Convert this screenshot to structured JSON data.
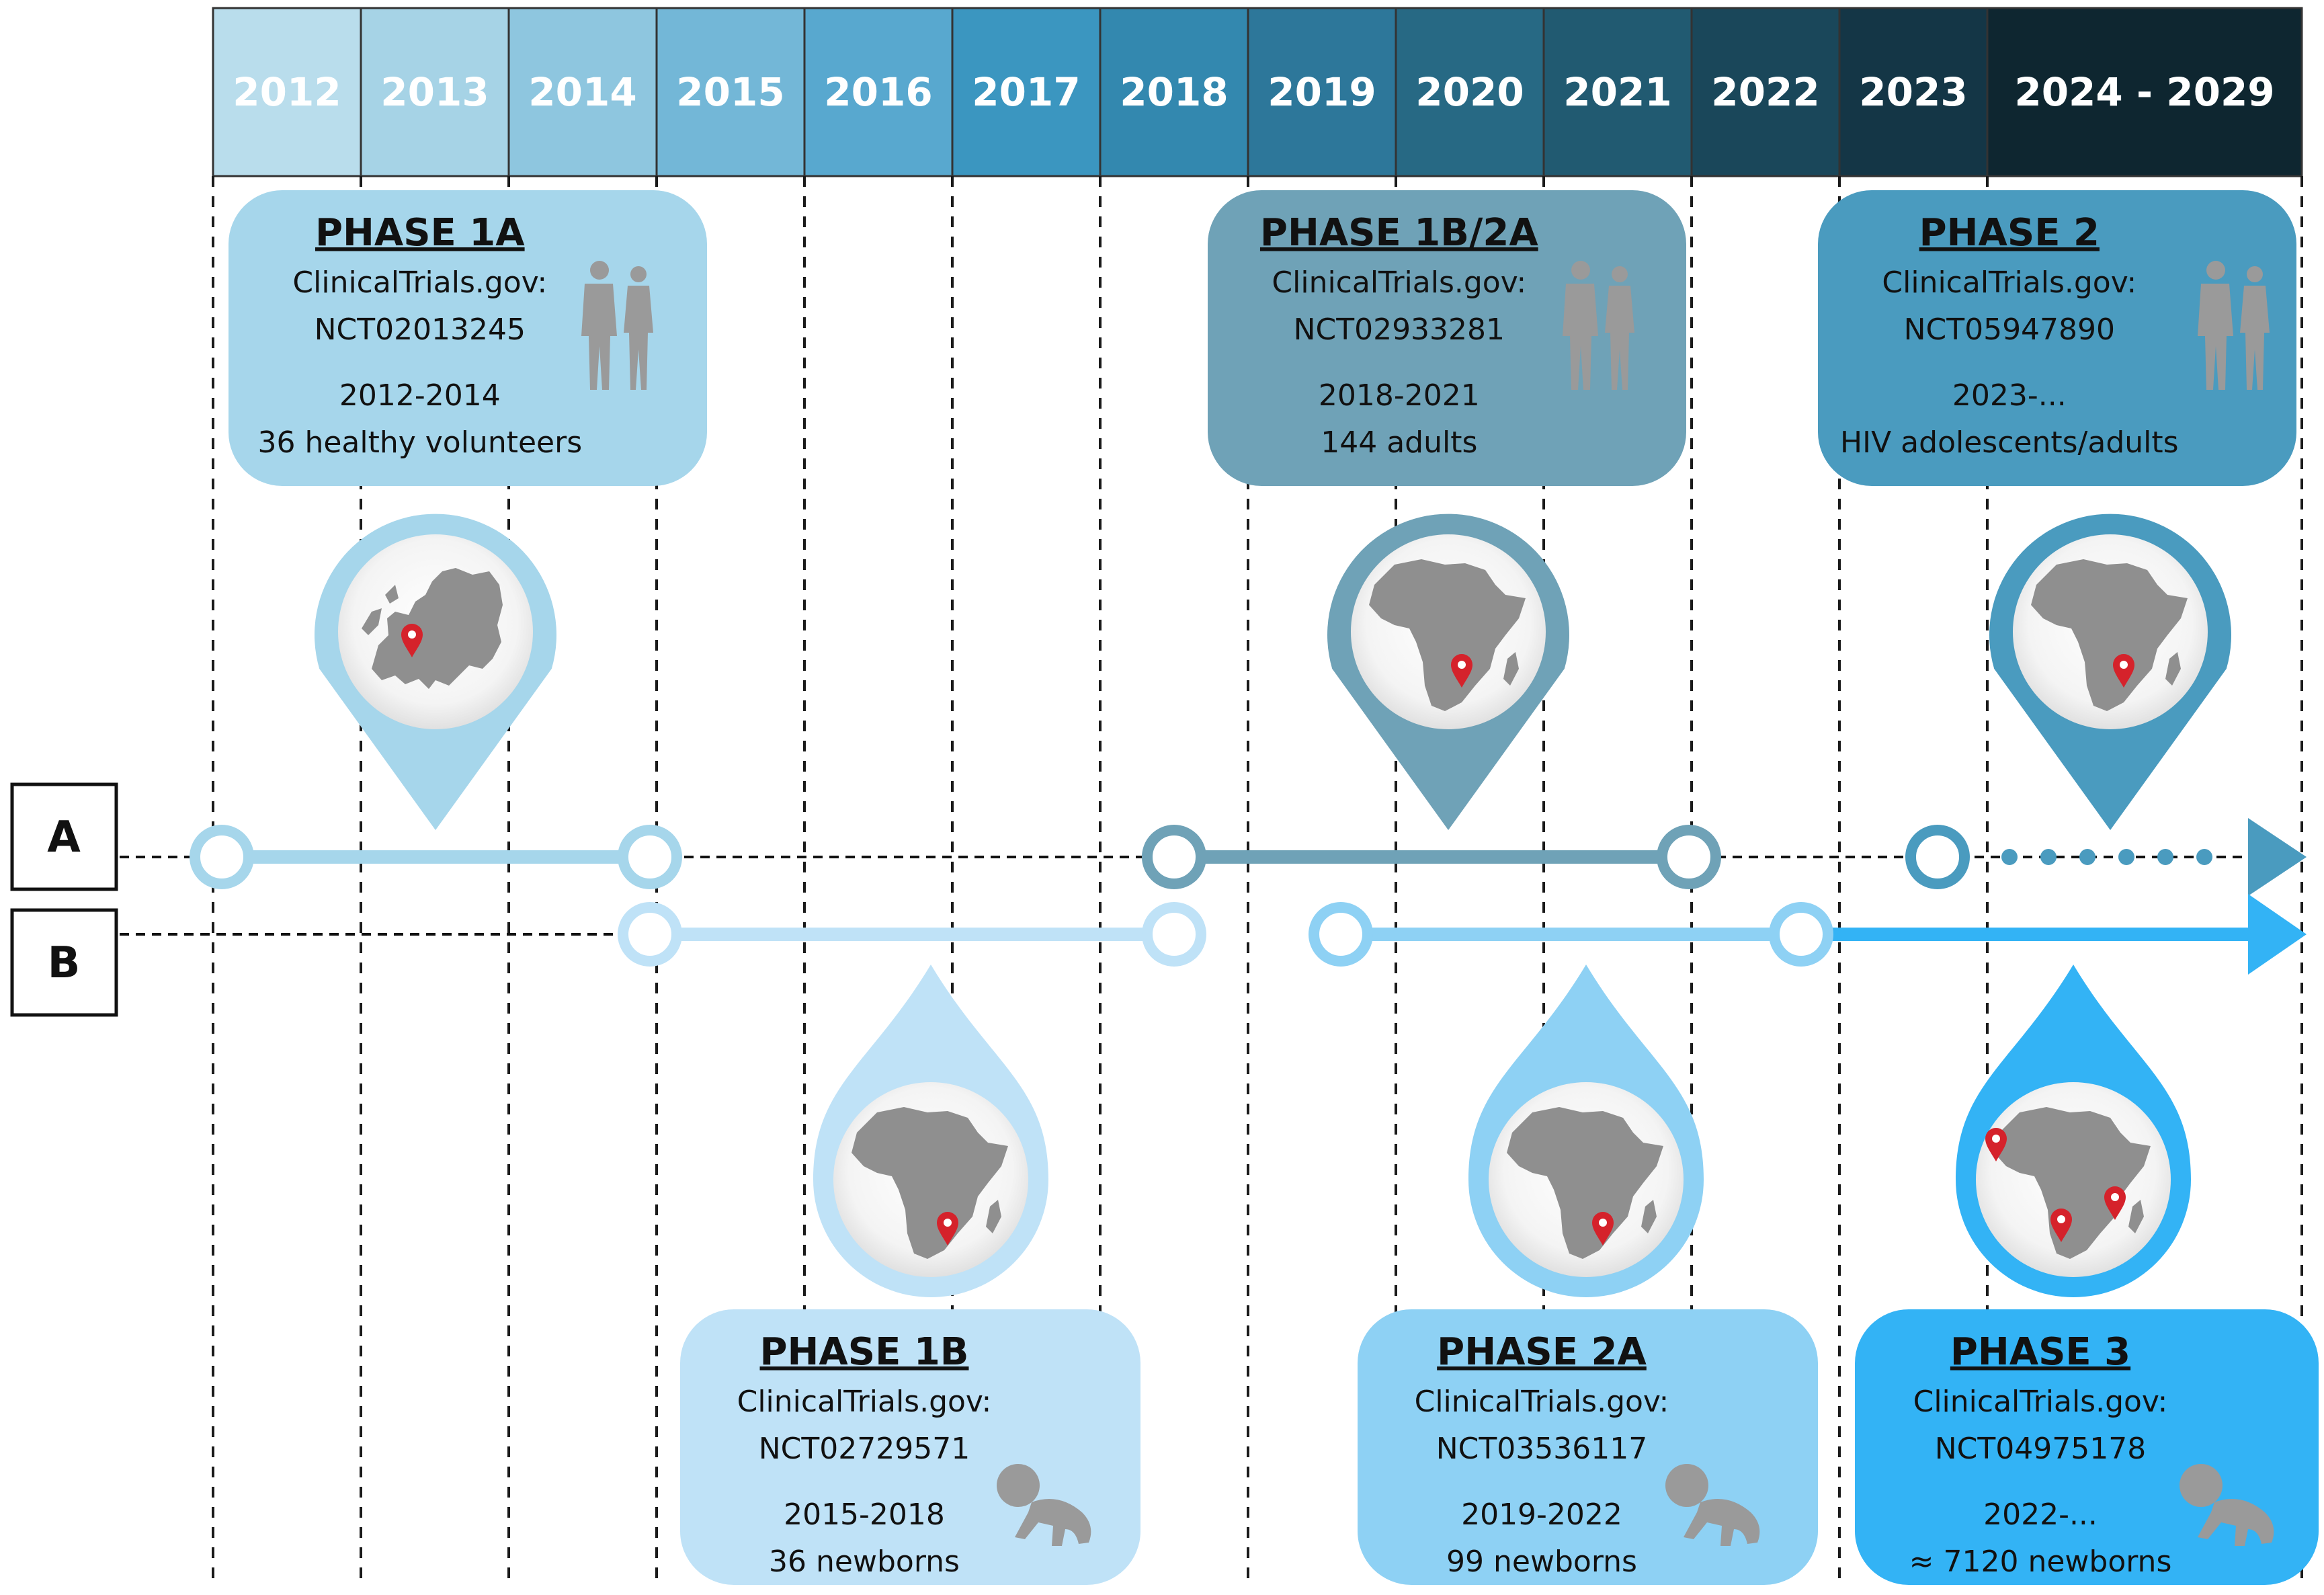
{
  "year_header": [
    {
      "label": "2012",
      "color": "#B9DDEC"
    },
    {
      "label": "2013",
      "color": "#A6D3E6"
    },
    {
      "label": "2014",
      "color": "#8EC6DF"
    },
    {
      "label": "2015",
      "color": "#73B7D7"
    },
    {
      "label": "2016",
      "color": "#58A8CF"
    },
    {
      "label": "2017",
      "color": "#3B96C0"
    },
    {
      "label": "2018",
      "color": "#3388AF"
    },
    {
      "label": "2019",
      "color": "#2D779A"
    },
    {
      "label": "2020",
      "color": "#276984"
    },
    {
      "label": "2021",
      "color": "#215A71"
    },
    {
      "label": "2022",
      "color": "#1A475A"
    },
    {
      "label": "2023",
      "color": "#143646"
    },
    {
      "label": "2024 - 2029",
      "color": "#0E2630"
    }
  ],
  "tracks": {
    "a_label": "A",
    "b_label": "B"
  },
  "phases_a": [
    {
      "title": "PHASE 1A",
      "registry": "ClinicalTrials.gov:",
      "nct": "NCT02013245",
      "years": "2012-2014",
      "population": "36 healthy volunteers",
      "color": "#A6D6EB",
      "map": "europe-map",
      "figure": "adults"
    },
    {
      "title": "PHASE 1B/2A",
      "registry": "ClinicalTrials.gov:",
      "nct": "NCT02933281",
      "years": "2018-2021",
      "population": "144 adults",
      "color": "#6FA2B7",
      "map": "africa-map",
      "figure": "adults"
    },
    {
      "title": "PHASE 2",
      "registry": "ClinicalTrials.gov:",
      "nct": "NCT05947890",
      "years": "2023-...",
      "population": "HIV adolescents/adults",
      "color": "#4A9BBF",
      "map": "africa-map",
      "figure": "adults"
    }
  ],
  "phases_b": [
    {
      "title": "PHASE 1B",
      "registry": "ClinicalTrials.gov:",
      "nct": "NCT02729571",
      "years": "2015-2018",
      "population": "36 newborns",
      "color": "#BFE2F7",
      "map": "africa-map",
      "figure": "infant"
    },
    {
      "title": "PHASE 2A",
      "registry": "ClinicalTrials.gov:",
      "nct": "NCT03536117",
      "years": "2019-2022",
      "population": "99 newborns",
      "color": "#8ED1F4",
      "map": "africa-map",
      "figure": "infant"
    },
    {
      "title": "PHASE 3",
      "registry": "ClinicalTrials.gov:",
      "nct": "NCT04975178",
      "years": "2022-...",
      "population": "≈ 7120 newborns",
      "color": "#33B3F5",
      "map": "africa-map",
      "figure": "infant"
    }
  ]
}
